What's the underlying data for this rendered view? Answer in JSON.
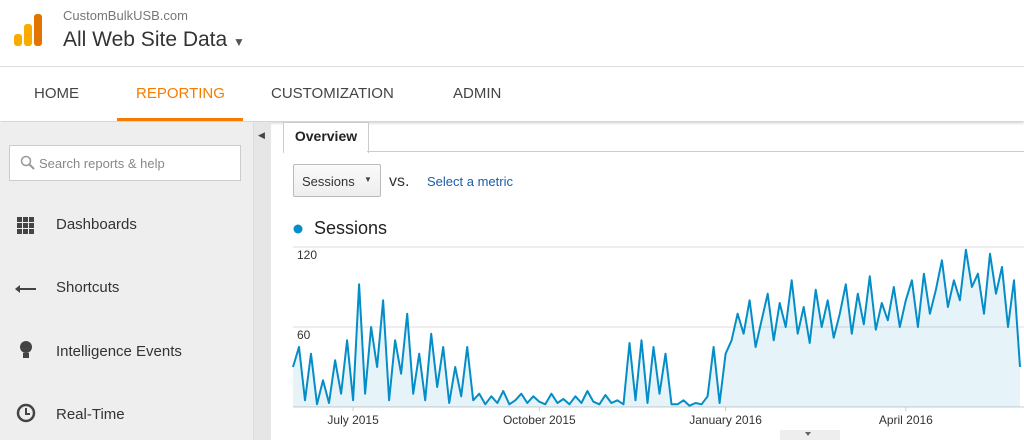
{
  "header": {
    "site": "CustomBulkUSB.com",
    "property": "All Web Site Data"
  },
  "nav": [
    "HOME",
    "REPORTING",
    "CUSTOMIZATION",
    "ADMIN"
  ],
  "sidebar": {
    "search_placeholder": "Search reports & help",
    "items": [
      "Dashboards",
      "Shortcuts",
      "Intelligence Events",
      "Real-Time"
    ]
  },
  "tab": "Overview",
  "controls": {
    "metric": "Sessions",
    "vs": "vs.",
    "select_metric": "Select a metric"
  },
  "chart_data": {
    "type": "line",
    "categories": [
      null,
      null,
      null,
      null,
      null,
      null,
      null,
      null,
      null,
      null,
      "July 2015",
      null,
      null,
      null,
      null,
      null,
      null,
      null,
      null,
      null,
      null,
      null,
      null,
      null,
      null,
      null,
      null,
      null,
      null,
      null,
      null,
      null,
      null,
      null,
      null,
      null,
      null,
      null,
      null,
      null,
      null,
      "October 2015",
      null,
      null,
      null,
      null,
      null,
      null,
      null,
      null,
      null,
      null,
      null,
      null,
      null,
      null,
      null,
      null,
      null,
      null,
      null,
      null,
      null,
      null,
      null,
      null,
      null,
      null,
      null,
      null,
      null,
      null,
      "January 2016",
      null,
      null,
      null,
      null,
      null,
      null,
      null,
      null,
      null,
      null,
      null,
      null,
      null,
      null,
      null,
      null,
      null,
      null,
      null,
      null,
      null,
      null,
      null,
      null,
      null,
      null,
      null,
      null,
      null,
      "April 2016",
      null,
      null,
      null,
      null,
      null,
      null,
      null,
      null,
      null,
      null,
      null,
      null,
      null,
      null,
      null,
      null,
      null,
      null,
      null
    ],
    "series": [
      {
        "name": "Sessions",
        "color": "#058dc7",
        "values": [
          30,
          45,
          5,
          40,
          2,
          20,
          3,
          35,
          10,
          50,
          5,
          92,
          10,
          60,
          30,
          80,
          5,
          50,
          25,
          70,
          10,
          40,
          5,
          55,
          15,
          45,
          3,
          30,
          8,
          45,
          5,
          10,
          2,
          8,
          3,
          12,
          2,
          5,
          10,
          3,
          8,
          4,
          2,
          10,
          3,
          6,
          2,
          8,
          3,
          12,
          4,
          2,
          9,
          3,
          5,
          2,
          48,
          5,
          50,
          3,
          45,
          10,
          40,
          2,
          2,
          5,
          1,
          3,
          2,
          8,
          45,
          3,
          40,
          50,
          70,
          55,
          80,
          45,
          65,
          85,
          50,
          78,
          60,
          95,
          55,
          75,
          48,
          88,
          60,
          80,
          52,
          70,
          92,
          55,
          85,
          62,
          98,
          58,
          78,
          65,
          90,
          60,
          80,
          95,
          60,
          100,
          70,
          88,
          110,
          75,
          95,
          80,
          118,
          90,
          100,
          70,
          115,
          85,
          105,
          60,
          95,
          30
        ]
      }
    ],
    "ylim": [
      0,
      120
    ],
    "yticks": [
      60,
      120
    ],
    "grid": true,
    "area": true
  }
}
